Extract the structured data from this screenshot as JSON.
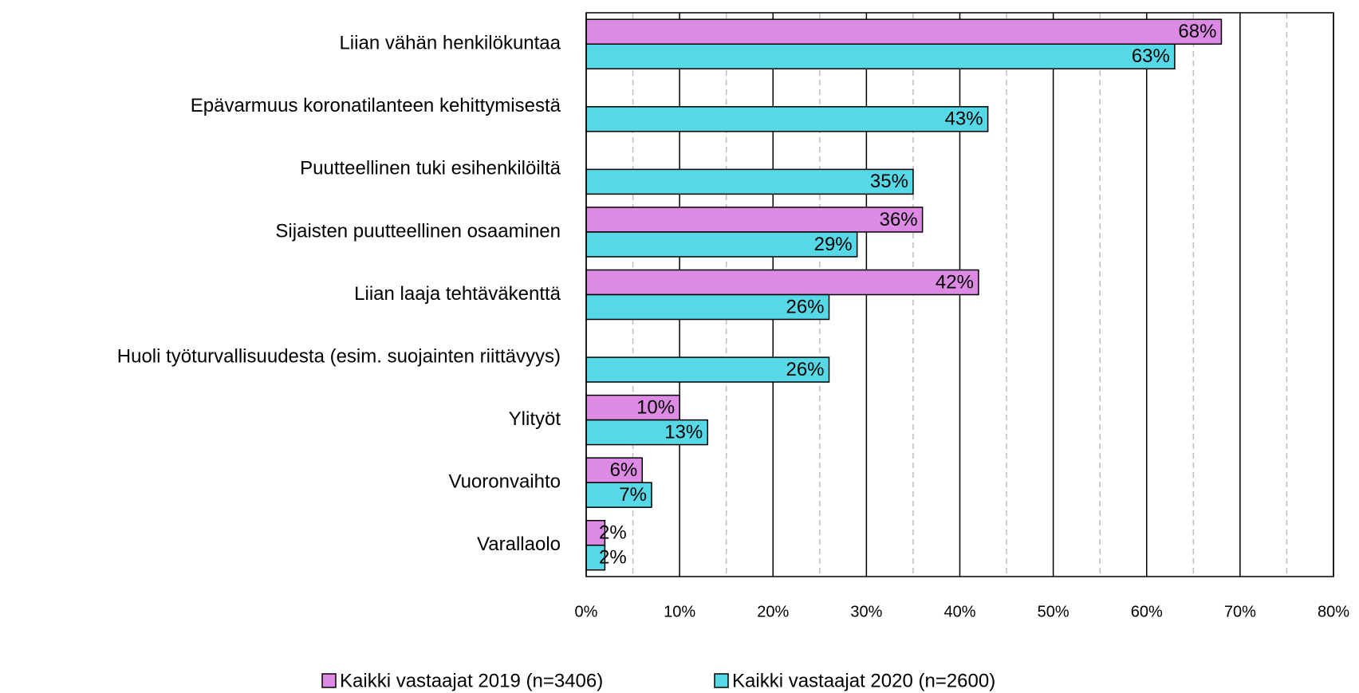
{
  "chart_data": {
    "type": "hbar",
    "categories": [
      "Liian vähän henkilökuntaa",
      "Epävarmuus koronatilanteen kehittymisestä",
      "Puutteellinen tuki esihenkilöiltä",
      "Sijaisten puutteellinen osaaminen",
      "Liian laaja tehtäväkenttä",
      "Huoli työturvallisuudesta (esim. suojainten riittävyys)",
      "Ylityöt",
      "Vuoronvaihto",
      "Varallaolo"
    ],
    "series": [
      {
        "name": "Kaikki vastaajat 2019 (n=3406)",
        "color": "#dc8ae3",
        "values": [
          68,
          null,
          null,
          36,
          42,
          null,
          10,
          6,
          2
        ],
        "value_labels": [
          "68%",
          null,
          null,
          "36%",
          "42%",
          null,
          "10%",
          "6%",
          "2%"
        ]
      },
      {
        "name": "Kaikki vastaajat 2020 (n=2600)",
        "color": "#56d8e6",
        "values": [
          63,
          43,
          35,
          29,
          26,
          26,
          13,
          7,
          2
        ],
        "value_labels": [
          "63%",
          "43%",
          "35%",
          "29%",
          "26%",
          "26%",
          "13%",
          "7%",
          "2%"
        ]
      }
    ],
    "xlim": [
      0,
      80
    ],
    "xticks": [
      {
        "value": 0,
        "label": "0%"
      },
      {
        "value": 10,
        "label": "10%"
      },
      {
        "value": 20,
        "label": "20%"
      },
      {
        "value": 30,
        "label": "30%"
      },
      {
        "value": 40,
        "label": "40%"
      },
      {
        "value": 50,
        "label": "50%"
      },
      {
        "value": 60,
        "label": "60%"
      },
      {
        "value": 70,
        "label": "70%"
      },
      {
        "value": 80,
        "label": "80%"
      }
    ],
    "minor_xticks": [
      5,
      15,
      25,
      35,
      45,
      55,
      65,
      75
    ],
    "grid": true,
    "legend": "bottom"
  }
}
